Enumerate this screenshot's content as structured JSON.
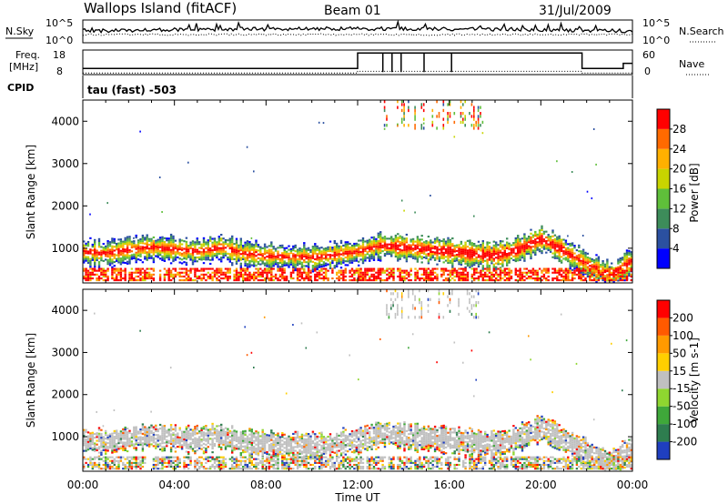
{
  "header": {
    "title": "Wallops Island (fitACF)",
    "beam": "Beam 01",
    "date": "31/Jul/2009"
  },
  "sky_panel": {
    "left_label": "N.Sky",
    "right_label": "N.Search",
    "y_top": "10^5",
    "y_bottom": "10^0",
    "y_top_right": "10^5",
    "y_bottom_right": "10^0"
  },
  "freq_panel": {
    "left_label_1": "Freq.",
    "left_label_2": "[MHz]",
    "right_label": "Nave",
    "y_top": "18",
    "y_bottom": "8",
    "y_top_right": "60",
    "y_bottom_right": "0"
  },
  "cpid": {
    "label": "CPID",
    "value": "tau (fast) -503"
  },
  "chart_data": [
    {
      "type": "heatmap",
      "name": "power",
      "ylabel": "Slant Range [km]",
      "xlabel": "",
      "x_range_hours": [
        0,
        24
      ],
      "ylim": [
        180,
        4500
      ],
      "yticks": [
        "1000",
        "2000",
        "3000",
        "4000"
      ],
      "colorbar": {
        "label": "Power [dB]",
        "ticks": [
          "4",
          "8",
          "12",
          "16",
          "20",
          "24",
          "28"
        ],
        "colors": [
          "#0000ff",
          "#2b50a0",
          "#3d8c5a",
          "#5fbf3a",
          "#c8d400",
          "#ffb000",
          "#ff6a00",
          "#ff0000"
        ]
      }
    },
    {
      "type": "heatmap",
      "name": "velocity",
      "ylabel": "Slant Range [km]",
      "xlabel": "Time UT",
      "x_range_hours": [
        0,
        24
      ],
      "ylim": [
        180,
        4500
      ],
      "yticks": [
        "1000",
        "2000",
        "3000",
        "4000"
      ],
      "xticks": [
        "00:00",
        "04:00",
        "08:00",
        "12:00",
        "16:00",
        "20:00",
        "00:00"
      ],
      "colorbar": {
        "label": "Velocity [m s-1]",
        "ticks": [
          "200",
          "100",
          "50",
          "15",
          "-15",
          "-50",
          "-100",
          "-200"
        ],
        "colors": [
          "#1f3fbf",
          "#2e7d4f",
          "#3fa83a",
          "#8fd630",
          "#c0c0c0",
          "#ffcf00",
          "#ff9a00",
          "#ff5a00",
          "#ff0000"
        ]
      }
    }
  ]
}
